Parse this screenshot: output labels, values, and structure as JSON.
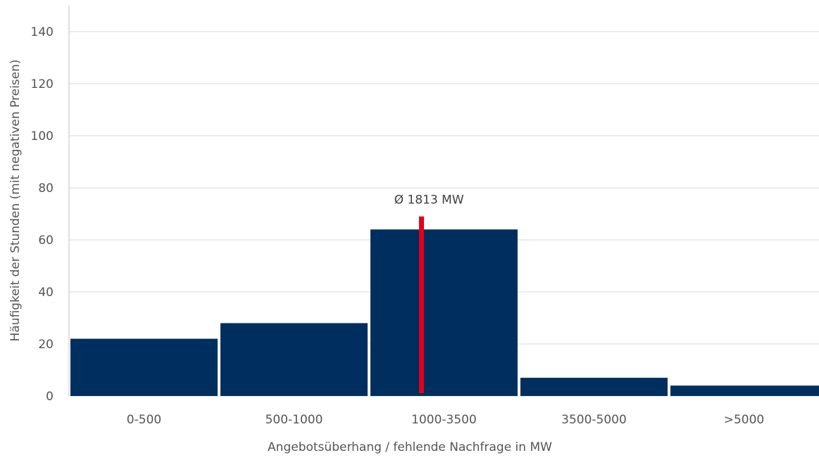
{
  "chart_data": {
    "type": "bar",
    "title": "",
    "xlabel": "Angebotsüberhang / fehlende Nachfrage in MW",
    "ylabel": "Häufigkeit der Stunden (mit negativen Preisen)",
    "categories": [
      "0-500",
      "500-1000",
      "1000-3500",
      "3500-5000",
      ">5000"
    ],
    "values": [
      22,
      28,
      64,
      7,
      4
    ],
    "ylim": [
      0,
      140
    ],
    "yticks": [
      "0",
      "20",
      "40",
      "60",
      "80",
      "100",
      "120",
      "140"
    ],
    "grid": true,
    "bar_color": "#002F5F",
    "marker": {
      "label": "Ø 1813 MW",
      "value": 69,
      "color": "#E2001A"
    }
  }
}
